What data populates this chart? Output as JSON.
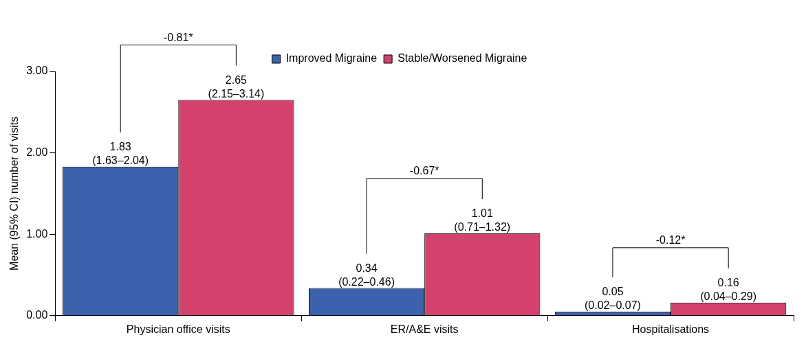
{
  "chart_data": {
    "type": "bar",
    "ylabel": "Mean (95% CI) number of visits",
    "categories": [
      "Physician office visits",
      "ER/A&E visits",
      "Hospitalisations"
    ],
    "series": [
      {
        "name": "Improved Migraine",
        "color": "#3d62ad",
        "values": [
          1.83,
          0.34,
          0.05
        ],
        "value_labels": [
          "1.83\n(1.63–2.04)",
          "0.34\n(0.22–0.46)",
          "0.05\n(0.02–0.07)"
        ]
      },
      {
        "name": "Stable/Worsened Migraine",
        "color": "#d4416d",
        "values": [
          2.65,
          1.01,
          0.16
        ],
        "value_labels": [
          "2.65\n(2.15–3.14)",
          "1.01\n(0.71–1.32)",
          "0.16\n(0.04–0.29)"
        ]
      }
    ],
    "ylim": [
      0,
      3
    ],
    "yticks": [
      {
        "value": 0,
        "label": "0.00"
      },
      {
        "value": 1,
        "label": "1.00"
      },
      {
        "value": 2,
        "label": "2.00"
      },
      {
        "value": 3,
        "label": "3.00"
      }
    ],
    "legend": "top",
    "annotations": [
      "-0.81*",
      "-0.67*",
      "-0.12*"
    ]
  }
}
